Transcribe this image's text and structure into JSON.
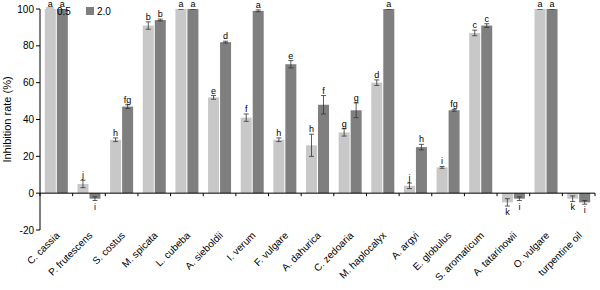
{
  "chart_data": {
    "type": "bar",
    "y_label": "Inhibition rate (%)",
    "categories": [
      "C. cassia",
      "P. frutescens",
      "S. costus",
      "M. spicata",
      "L. cubeba",
      "A. sieboldii",
      "I. verum",
      "F. vulgare",
      "A. dahurica",
      "C. zedoaria",
      "M. haplocalyx",
      "A. argyi",
      "E. globulus",
      "S. aromaticum",
      "A. tatarinowii",
      "O. vulgare",
      "turpentine oil"
    ],
    "series": [
      {
        "name": "0.5",
        "color": "#c8c8c8",
        "values": [
          100,
          5,
          29,
          91,
          100,
          52,
          41,
          29,
          26,
          33,
          60,
          4,
          14,
          87,
          -5,
          100,
          -3
        ],
        "errors": [
          0,
          2,
          1,
          2,
          0,
          1,
          2,
          1,
          6,
          2,
          1.5,
          1.5,
          0.5,
          1.5,
          2,
          0,
          1.5
        ],
        "letters": [
          "a",
          "j",
          "h",
          "b",
          "a",
          "e",
          "f",
          "h",
          "h",
          "g",
          "d",
          "j",
          "i",
          "c",
          "k",
          "a",
          "k"
        ]
      },
      {
        "name": "2.0",
        "color": "#7f7f7f",
        "values": [
          100,
          -3,
          47,
          94,
          100,
          82,
          99,
          70,
          48,
          45,
          100,
          25,
          45,
          91,
          -3,
          100,
          -5
        ],
        "errors": [
          0,
          1,
          1,
          0.5,
          0,
          0.5,
          0.5,
          2,
          5,
          4,
          0,
          1.5,
          0.5,
          1,
          1,
          0,
          1
        ],
        "letters": [
          "a",
          "i",
          "fg",
          "b",
          "a",
          "d",
          "a",
          "e",
          "f",
          "g",
          "a",
          "h",
          "fg",
          "c",
          "i",
          "a",
          "i"
        ]
      }
    ],
    "ylim": [
      -20,
      100
    ],
    "yticks": [
      -20,
      0,
      20,
      40,
      60,
      80,
      100
    ],
    "legend": "upper left"
  }
}
